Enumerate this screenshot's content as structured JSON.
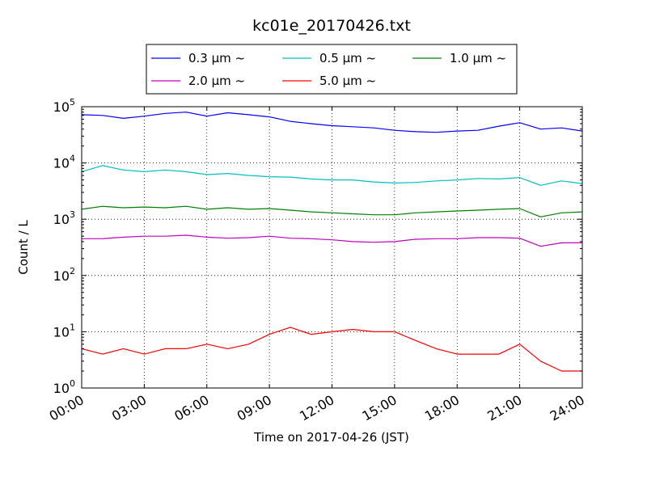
{
  "chart_data": {
    "type": "line",
    "title": "kc01e_20170426.txt",
    "xlabel": "Time on 2017-04-26 (JST)",
    "ylabel": "Count / L",
    "yscale": "log",
    "ylim": [
      1,
      100000
    ],
    "xlim": [
      "00:00",
      "24:00"
    ],
    "xticks": [
      "00:00",
      "03:00",
      "06:00",
      "09:00",
      "12:00",
      "15:00",
      "18:00",
      "21:00",
      "24:00"
    ],
    "yticks": [
      {
        "base": "10",
        "exp": "0"
      },
      {
        "base": "10",
        "exp": "1"
      },
      {
        "base": "10",
        "exp": "2"
      },
      {
        "base": "10",
        "exp": "3"
      },
      {
        "base": "10",
        "exp": "4"
      },
      {
        "base": "10",
        "exp": "5"
      }
    ],
    "grid": true,
    "legend_position": "top-center, above plot",
    "series": [
      {
        "name": "0.3 μm ~",
        "color": "#0000ff",
        "x": [
          "00:00",
          "01:00",
          "02:00",
          "03:00",
          "04:00",
          "05:00",
          "06:00",
          "07:00",
          "08:00",
          "09:00",
          "10:00",
          "11:00",
          "12:00",
          "13:00",
          "14:00",
          "15:00",
          "16:00",
          "17:00",
          "18:00",
          "19:00",
          "20:00",
          "21:00",
          "22:00",
          "23:00",
          "24:00"
        ],
        "values": [
          72000,
          70000,
          62000,
          68000,
          76000,
          80000,
          68000,
          78000,
          72000,
          66000,
          55000,
          50000,
          46000,
          44000,
          42000,
          38000,
          36000,
          35000,
          37000,
          38000,
          45000,
          52000,
          40000,
          42000,
          37000
        ]
      },
      {
        "name": "0.5 μm ~",
        "color": "#00bfbf",
        "x": [
          "00:00",
          "01:00",
          "02:00",
          "03:00",
          "04:00",
          "05:00",
          "06:00",
          "07:00",
          "08:00",
          "09:00",
          "10:00",
          "11:00",
          "12:00",
          "13:00",
          "14:00",
          "15:00",
          "16:00",
          "17:00",
          "18:00",
          "19:00",
          "20:00",
          "21:00",
          "22:00",
          "23:00",
          "24:00"
        ],
        "values": [
          7000,
          9000,
          7500,
          7000,
          7500,
          7000,
          6200,
          6500,
          6000,
          5700,
          5600,
          5200,
          5000,
          5000,
          4600,
          4400,
          4500,
          4800,
          5000,
          5300,
          5200,
          5500,
          4000,
          4800,
          4300
        ]
      },
      {
        "name": "1.0 μm ~",
        "color": "#008000",
        "x": [
          "00:00",
          "01:00",
          "02:00",
          "03:00",
          "04:00",
          "05:00",
          "06:00",
          "07:00",
          "08:00",
          "09:00",
          "10:00",
          "11:00",
          "12:00",
          "13:00",
          "14:00",
          "15:00",
          "16:00",
          "17:00",
          "18:00",
          "19:00",
          "20:00",
          "21:00",
          "22:00",
          "23:00",
          "24:00"
        ],
        "values": [
          1500,
          1700,
          1600,
          1650,
          1600,
          1700,
          1500,
          1600,
          1500,
          1550,
          1450,
          1350,
          1300,
          1250,
          1200,
          1200,
          1300,
          1350,
          1400,
          1450,
          1500,
          1550,
          1100,
          1300,
          1350
        ]
      },
      {
        "name": "2.0 μm ~",
        "color": "#bf00bf",
        "x": [
          "00:00",
          "01:00",
          "02:00",
          "03:00",
          "04:00",
          "05:00",
          "06:00",
          "07:00",
          "08:00",
          "09:00",
          "10:00",
          "11:00",
          "12:00",
          "13:00",
          "14:00",
          "15:00",
          "16:00",
          "17:00",
          "18:00",
          "19:00",
          "20:00",
          "21:00",
          "22:00",
          "23:00",
          "24:00"
        ],
        "values": [
          450,
          450,
          480,
          500,
          500,
          520,
          480,
          460,
          470,
          500,
          460,
          450,
          430,
          400,
          390,
          400,
          440,
          450,
          450,
          470,
          470,
          460,
          330,
          380,
          380
        ]
      },
      {
        "name": "5.0 μm ~",
        "color": "#ff0000",
        "x": [
          "00:00",
          "01:00",
          "02:00",
          "03:00",
          "04:00",
          "05:00",
          "06:00",
          "07:00",
          "08:00",
          "09:00",
          "10:00",
          "11:00",
          "12:00",
          "13:00",
          "14:00",
          "15:00",
          "16:00",
          "17:00",
          "18:00",
          "19:00",
          "20:00",
          "21:00",
          "22:00",
          "23:00",
          "24:00"
        ],
        "values": [
          5,
          4,
          5,
          4,
          5,
          5,
          6,
          5,
          6,
          9,
          12,
          9,
          10,
          11,
          10,
          10,
          7,
          5,
          4,
          4,
          4,
          6,
          3,
          2,
          2
        ]
      }
    ]
  }
}
